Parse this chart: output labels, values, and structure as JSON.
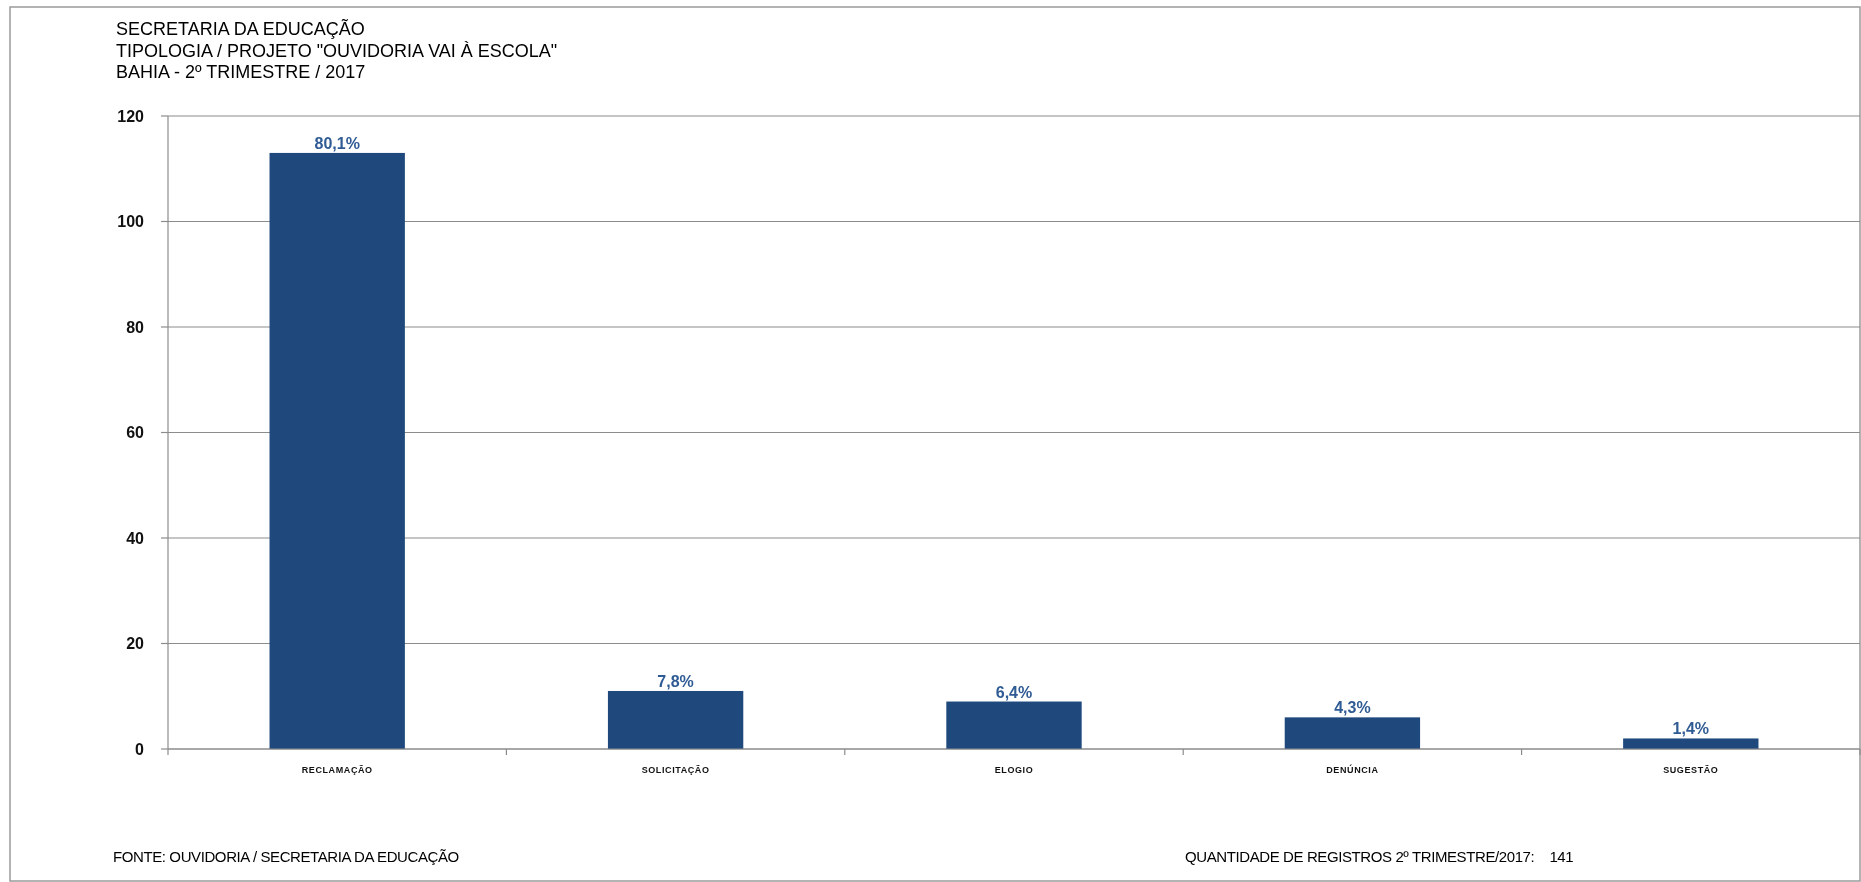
{
  "chart_data": {
    "type": "bar",
    "title": "SECRETARIA DA EDUCAÇÃO",
    "subtitle": "TIPOLOGIA / PROJETO \"OUVIDORIA VAI À ESCOLA\"\nBAHIA - 2º TRIMESTRE / 2017",
    "categories": [
      "RECLAMAÇÃO",
      "SOLICITAÇÃO",
      "ELOGIO",
      "DENÚNCIA",
      "SUGESTÃO"
    ],
    "values": [
      113,
      11,
      9,
      6,
      2
    ],
    "color": "#1f497d",
    "ylim": [
      0,
      120
    ],
    "yticks": [
      0,
      20,
      40,
      60,
      80,
      100,
      120
    ],
    "grid": "y",
    "annotations": [
      {
        "text": "80,1%",
        "x": "RECLAMAÇÃO",
        "y": 113
      },
      {
        "text": "7,8%",
        "x": "SOLICITAÇÃO",
        "y": 11
      },
      {
        "text": "6,4%",
        "x": "ELOGIO",
        "y": 9
      },
      {
        "text": "4,3%",
        "x": "DENÚNCIA",
        "y": 6
      },
      {
        "text": "1,4%",
        "x": "SUGESTÃO",
        "y": 2
      },
      "FONTE: OUVIDORIA / SECRETARIA DA EDUCAÇÃO",
      "QUANTIDADE DE REGISTROS 2º TRIMESTRE/2017:    141"
    ]
  }
}
